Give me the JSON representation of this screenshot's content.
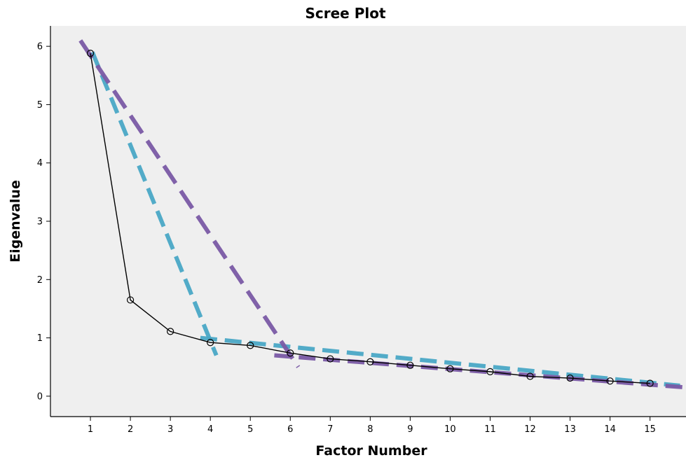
{
  "chart_data": {
    "type": "line",
    "title": "Scree Plot",
    "xlabel": "Factor Number",
    "ylabel": "Eigenvalue",
    "x": [
      1,
      2,
      3,
      4,
      5,
      6,
      7,
      8,
      9,
      10,
      11,
      12,
      13,
      14,
      15
    ],
    "xlim": [
      0,
      15.9
    ],
    "ylim": [
      -0.35,
      6.35
    ],
    "yticks": [
      0,
      1,
      2,
      3,
      4,
      5,
      6
    ],
    "grid": false,
    "series": [
      {
        "values": [
          5.88,
          1.65,
          1.11,
          0.92,
          0.87,
          0.74,
          0.64,
          0.59,
          0.53,
          0.47,
          0.42,
          0.34,
          0.31,
          0.26,
          0.22
        ],
        "color": "#000000",
        "marker": "open-circle"
      }
    ],
    "annotation_lines": [
      {
        "color": "#4aa8c6",
        "style": "dashed",
        "points": [
          [
            1.05,
            5.9
          ],
          [
            4.15,
            0.7
          ]
        ]
      },
      {
        "color": "#4aa8c6",
        "style": "dashed",
        "points": [
          [
            3.75,
            1.0
          ],
          [
            15.75,
            0.18
          ]
        ]
      },
      {
        "color": "#7b5aa6",
        "style": "dashed",
        "points": [
          [
            0.75,
            6.1
          ],
          [
            6.2,
            0.5
          ]
        ]
      },
      {
        "color": "#7b5aa6",
        "style": "dashed",
        "points": [
          [
            5.6,
            0.7
          ],
          [
            15.9,
            0.15
          ]
        ]
      }
    ],
    "colors": {
      "plot_background": "#efefef",
      "line": "#000000",
      "teal": "#4aa8c6",
      "purple": "#7b5aa6"
    }
  }
}
